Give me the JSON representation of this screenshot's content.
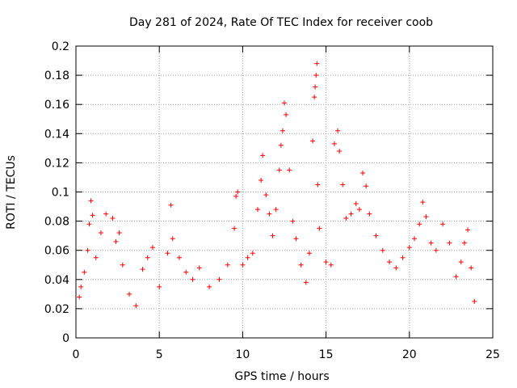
{
  "chart_data": {
    "type": "scatter",
    "title": "Day 281 of 2024, Rate Of TEC Index for receiver coob",
    "xlabel": "GPS time / hours",
    "ylabel": "ROTI / TECUs",
    "xlim": [
      0,
      25
    ],
    "ylim": [
      0,
      0.2
    ],
    "x_ticks": [
      0,
      5,
      10,
      15,
      20,
      25
    ],
    "x_tick_labels": [
      "0",
      "5",
      "10",
      "15",
      "20",
      "25"
    ],
    "y_ticks": [
      0,
      0.02,
      0.04,
      0.06,
      0.08,
      0.1,
      0.12,
      0.14,
      0.16,
      0.18,
      0.2
    ],
    "y_tick_labels": [
      "0",
      "0.02",
      "0.04",
      "0.06",
      "0.08",
      "0.1",
      "0.12",
      "0.14",
      "0.16",
      "0.18",
      "0.2"
    ],
    "grid": true,
    "marker": "+",
    "marker_color": "#ff0000",
    "series": [
      {
        "name": "ROTI",
        "points": [
          [
            0.2,
            0.028
          ],
          [
            0.3,
            0.035
          ],
          [
            0.5,
            0.045
          ],
          [
            0.7,
            0.06
          ],
          [
            0.8,
            0.078
          ],
          [
            0.9,
            0.094
          ],
          [
            1.0,
            0.084
          ],
          [
            1.2,
            0.055
          ],
          [
            1.5,
            0.072
          ],
          [
            1.8,
            0.085
          ],
          [
            2.2,
            0.082
          ],
          [
            2.4,
            0.066
          ],
          [
            2.6,
            0.072
          ],
          [
            2.8,
            0.05
          ],
          [
            3.2,
            0.03
          ],
          [
            3.6,
            0.022
          ],
          [
            4.0,
            0.047
          ],
          [
            4.3,
            0.055
          ],
          [
            4.6,
            0.062
          ],
          [
            5.0,
            0.035
          ],
          [
            5.5,
            0.058
          ],
          [
            5.7,
            0.091
          ],
          [
            5.8,
            0.068
          ],
          [
            6.2,
            0.055
          ],
          [
            6.6,
            0.045
          ],
          [
            7.0,
            0.04
          ],
          [
            7.4,
            0.048
          ],
          [
            8.0,
            0.035
          ],
          [
            8.6,
            0.04
          ],
          [
            9.1,
            0.05
          ],
          [
            9.5,
            0.075
          ],
          [
            9.6,
            0.097
          ],
          [
            9.7,
            0.1
          ],
          [
            10.0,
            0.05
          ],
          [
            10.3,
            0.055
          ],
          [
            10.6,
            0.058
          ],
          [
            10.9,
            0.088
          ],
          [
            11.1,
            0.108
          ],
          [
            11.2,
            0.125
          ],
          [
            11.4,
            0.098
          ],
          [
            11.6,
            0.085
          ],
          [
            11.8,
            0.07
          ],
          [
            12.0,
            0.088
          ],
          [
            12.2,
            0.115
          ],
          [
            12.3,
            0.132
          ],
          [
            12.4,
            0.142
          ],
          [
            12.5,
            0.161
          ],
          [
            12.6,
            0.153
          ],
          [
            12.8,
            0.115
          ],
          [
            13.0,
            0.08
          ],
          [
            13.2,
            0.068
          ],
          [
            13.5,
            0.05
          ],
          [
            13.8,
            0.038
          ],
          [
            14.0,
            0.058
          ],
          [
            14.2,
            0.135
          ],
          [
            14.3,
            0.165
          ],
          [
            14.35,
            0.172
          ],
          [
            14.4,
            0.18
          ],
          [
            14.45,
            0.188
          ],
          [
            14.5,
            0.105
          ],
          [
            14.6,
            0.075
          ],
          [
            15.0,
            0.052
          ],
          [
            15.3,
            0.05
          ],
          [
            15.5,
            0.133
          ],
          [
            15.7,
            0.142
          ],
          [
            15.8,
            0.128
          ],
          [
            16.0,
            0.105
          ],
          [
            16.2,
            0.082
          ],
          [
            16.5,
            0.085
          ],
          [
            16.8,
            0.092
          ],
          [
            17.0,
            0.088
          ],
          [
            17.2,
            0.113
          ],
          [
            17.4,
            0.104
          ],
          [
            17.6,
            0.085
          ],
          [
            18.0,
            0.07
          ],
          [
            18.4,
            0.06
          ],
          [
            18.8,
            0.052
          ],
          [
            19.2,
            0.048
          ],
          [
            19.6,
            0.055
          ],
          [
            20.0,
            0.062
          ],
          [
            20.3,
            0.068
          ],
          [
            20.6,
            0.078
          ],
          [
            20.8,
            0.093
          ],
          [
            21.0,
            0.083
          ],
          [
            21.3,
            0.065
          ],
          [
            21.6,
            0.06
          ],
          [
            22.0,
            0.078
          ],
          [
            22.4,
            0.065
          ],
          [
            22.8,
            0.042
          ],
          [
            23.1,
            0.052
          ],
          [
            23.3,
            0.065
          ],
          [
            23.5,
            0.074
          ],
          [
            23.7,
            0.048
          ],
          [
            23.9,
            0.025
          ]
        ]
      }
    ]
  }
}
